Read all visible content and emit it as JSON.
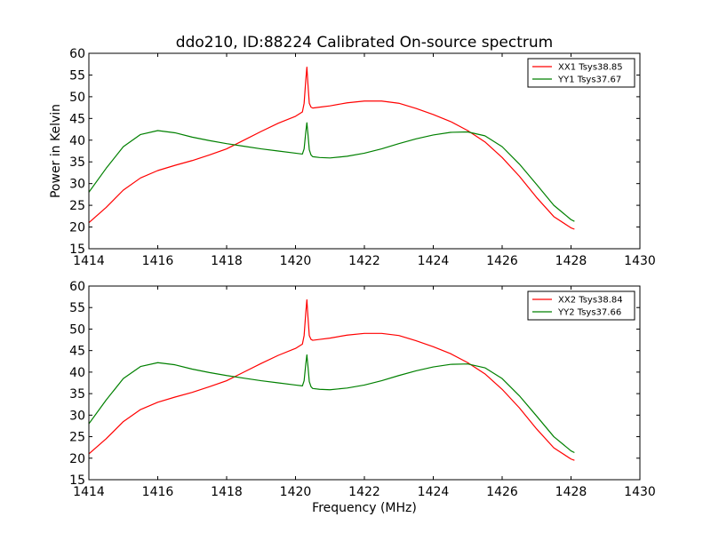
{
  "figure": {
    "title": "ddo210, ID:88224 Calibrated On-source spectrum",
    "xlabel": "Frequency (MHz)",
    "ylabel": "Power in Kelvin"
  },
  "chart_data": [
    {
      "type": "line",
      "title": "ddo210, ID:88224 Calibrated On-source spectrum",
      "xlabel": "",
      "ylabel": "Power in Kelvin",
      "xlim": [
        1414,
        1430
      ],
      "ylim": [
        15,
        60
      ],
      "xticks": [
        "1414",
        "1416",
        "1418",
        "1420",
        "1422",
        "1424",
        "1426",
        "1428",
        "1430"
      ],
      "yticks": [
        "15",
        "20",
        "25",
        "30",
        "35",
        "40",
        "45",
        "50",
        "55",
        "60"
      ],
      "grid": false,
      "legend_position": "top-right",
      "series": [
        {
          "name": "XX1 Tsys38.85",
          "color": "#ff0000",
          "x": [
            1414.0,
            1414.5,
            1415.0,
            1415.5,
            1416.0,
            1416.5,
            1417.0,
            1417.5,
            1418.0,
            1418.5,
            1419.0,
            1419.5,
            1420.0,
            1420.2,
            1420.25,
            1420.3,
            1420.33,
            1420.36,
            1420.4,
            1420.45,
            1420.5,
            1420.7,
            1421.0,
            1421.5,
            1422.0,
            1422.5,
            1423.0,
            1423.5,
            1424.0,
            1424.5,
            1425.0,
            1425.5,
            1426.0,
            1426.5,
            1427.0,
            1427.5,
            1428.0,
            1428.1
          ],
          "y": [
            21.0,
            24.5,
            28.5,
            31.3,
            33.0,
            34.2,
            35.3,
            36.6,
            38.0,
            40.0,
            42.0,
            43.9,
            45.5,
            46.5,
            48.5,
            54.0,
            56.8,
            53.0,
            48.5,
            47.6,
            47.4,
            47.6,
            47.9,
            48.6,
            49.0,
            49.0,
            48.5,
            47.3,
            45.9,
            44.3,
            42.2,
            39.6,
            36.0,
            31.7,
            26.8,
            22.4,
            19.8,
            19.5
          ]
        },
        {
          "name": "YY1 Tsys37.67",
          "color": "#008000",
          "x": [
            1414.0,
            1414.5,
            1415.0,
            1415.5,
            1416.0,
            1416.5,
            1417.0,
            1417.5,
            1418.0,
            1418.5,
            1419.0,
            1419.5,
            1420.0,
            1420.2,
            1420.25,
            1420.3,
            1420.33,
            1420.36,
            1420.4,
            1420.45,
            1420.5,
            1420.7,
            1421.0,
            1421.5,
            1422.0,
            1422.5,
            1423.0,
            1423.5,
            1424.0,
            1424.5,
            1425.0,
            1425.5,
            1426.0,
            1426.5,
            1427.0,
            1427.5,
            1428.0,
            1428.1
          ],
          "y": [
            28.0,
            33.5,
            38.5,
            41.3,
            42.2,
            41.7,
            40.7,
            39.9,
            39.2,
            38.6,
            38.0,
            37.5,
            37.0,
            36.8,
            38.0,
            42.0,
            44.0,
            41.5,
            37.8,
            36.6,
            36.2,
            36.0,
            35.9,
            36.3,
            37.0,
            38.0,
            39.2,
            40.3,
            41.2,
            41.8,
            41.9,
            41.0,
            38.5,
            34.5,
            29.8,
            25.0,
            21.7,
            21.3
          ]
        }
      ]
    },
    {
      "type": "line",
      "title": "",
      "xlabel": "Frequency (MHz)",
      "ylabel": "",
      "xlim": [
        1414,
        1430
      ],
      "ylim": [
        15,
        60
      ],
      "xticks": [
        "1414",
        "1416",
        "1418",
        "1420",
        "1422",
        "1424",
        "1426",
        "1428",
        "1430"
      ],
      "yticks": [
        "15",
        "20",
        "25",
        "30",
        "35",
        "40",
        "45",
        "50",
        "55",
        "60"
      ],
      "grid": false,
      "legend_position": "top-right",
      "series": [
        {
          "name": "XX2 Tsys38.84",
          "color": "#ff0000",
          "x": [
            1414.0,
            1414.5,
            1415.0,
            1415.5,
            1416.0,
            1416.5,
            1417.0,
            1417.5,
            1418.0,
            1418.5,
            1419.0,
            1419.5,
            1420.0,
            1420.2,
            1420.25,
            1420.3,
            1420.33,
            1420.36,
            1420.4,
            1420.45,
            1420.5,
            1420.7,
            1421.0,
            1421.5,
            1422.0,
            1422.5,
            1423.0,
            1423.5,
            1424.0,
            1424.5,
            1425.0,
            1425.5,
            1426.0,
            1426.5,
            1427.0,
            1427.5,
            1428.0,
            1428.1
          ],
          "y": [
            21.0,
            24.5,
            28.5,
            31.3,
            33.0,
            34.2,
            35.3,
            36.6,
            38.0,
            40.0,
            42.0,
            43.9,
            45.5,
            46.5,
            48.5,
            54.0,
            56.8,
            53.0,
            48.5,
            47.6,
            47.4,
            47.6,
            47.9,
            48.6,
            49.0,
            49.0,
            48.5,
            47.3,
            45.9,
            44.3,
            42.2,
            39.6,
            36.0,
            31.7,
            26.8,
            22.4,
            19.8,
            19.5
          ]
        },
        {
          "name": "YY2 Tsys37.66",
          "color": "#008000",
          "x": [
            1414.0,
            1414.5,
            1415.0,
            1415.5,
            1416.0,
            1416.5,
            1417.0,
            1417.5,
            1418.0,
            1418.5,
            1419.0,
            1419.5,
            1420.0,
            1420.2,
            1420.25,
            1420.3,
            1420.33,
            1420.36,
            1420.4,
            1420.45,
            1420.5,
            1420.7,
            1421.0,
            1421.5,
            1422.0,
            1422.5,
            1423.0,
            1423.5,
            1424.0,
            1424.5,
            1425.0,
            1425.5,
            1426.0,
            1426.5,
            1427.0,
            1427.5,
            1428.0,
            1428.1
          ],
          "y": [
            28.0,
            33.5,
            38.5,
            41.3,
            42.2,
            41.7,
            40.7,
            39.9,
            39.2,
            38.6,
            38.0,
            37.5,
            37.0,
            36.8,
            38.0,
            42.0,
            44.0,
            41.5,
            37.8,
            36.6,
            36.2,
            36.0,
            35.9,
            36.3,
            37.0,
            38.0,
            39.2,
            40.3,
            41.2,
            41.8,
            41.9,
            41.0,
            38.5,
            34.5,
            29.8,
            25.0,
            21.7,
            21.3
          ]
        }
      ]
    }
  ]
}
